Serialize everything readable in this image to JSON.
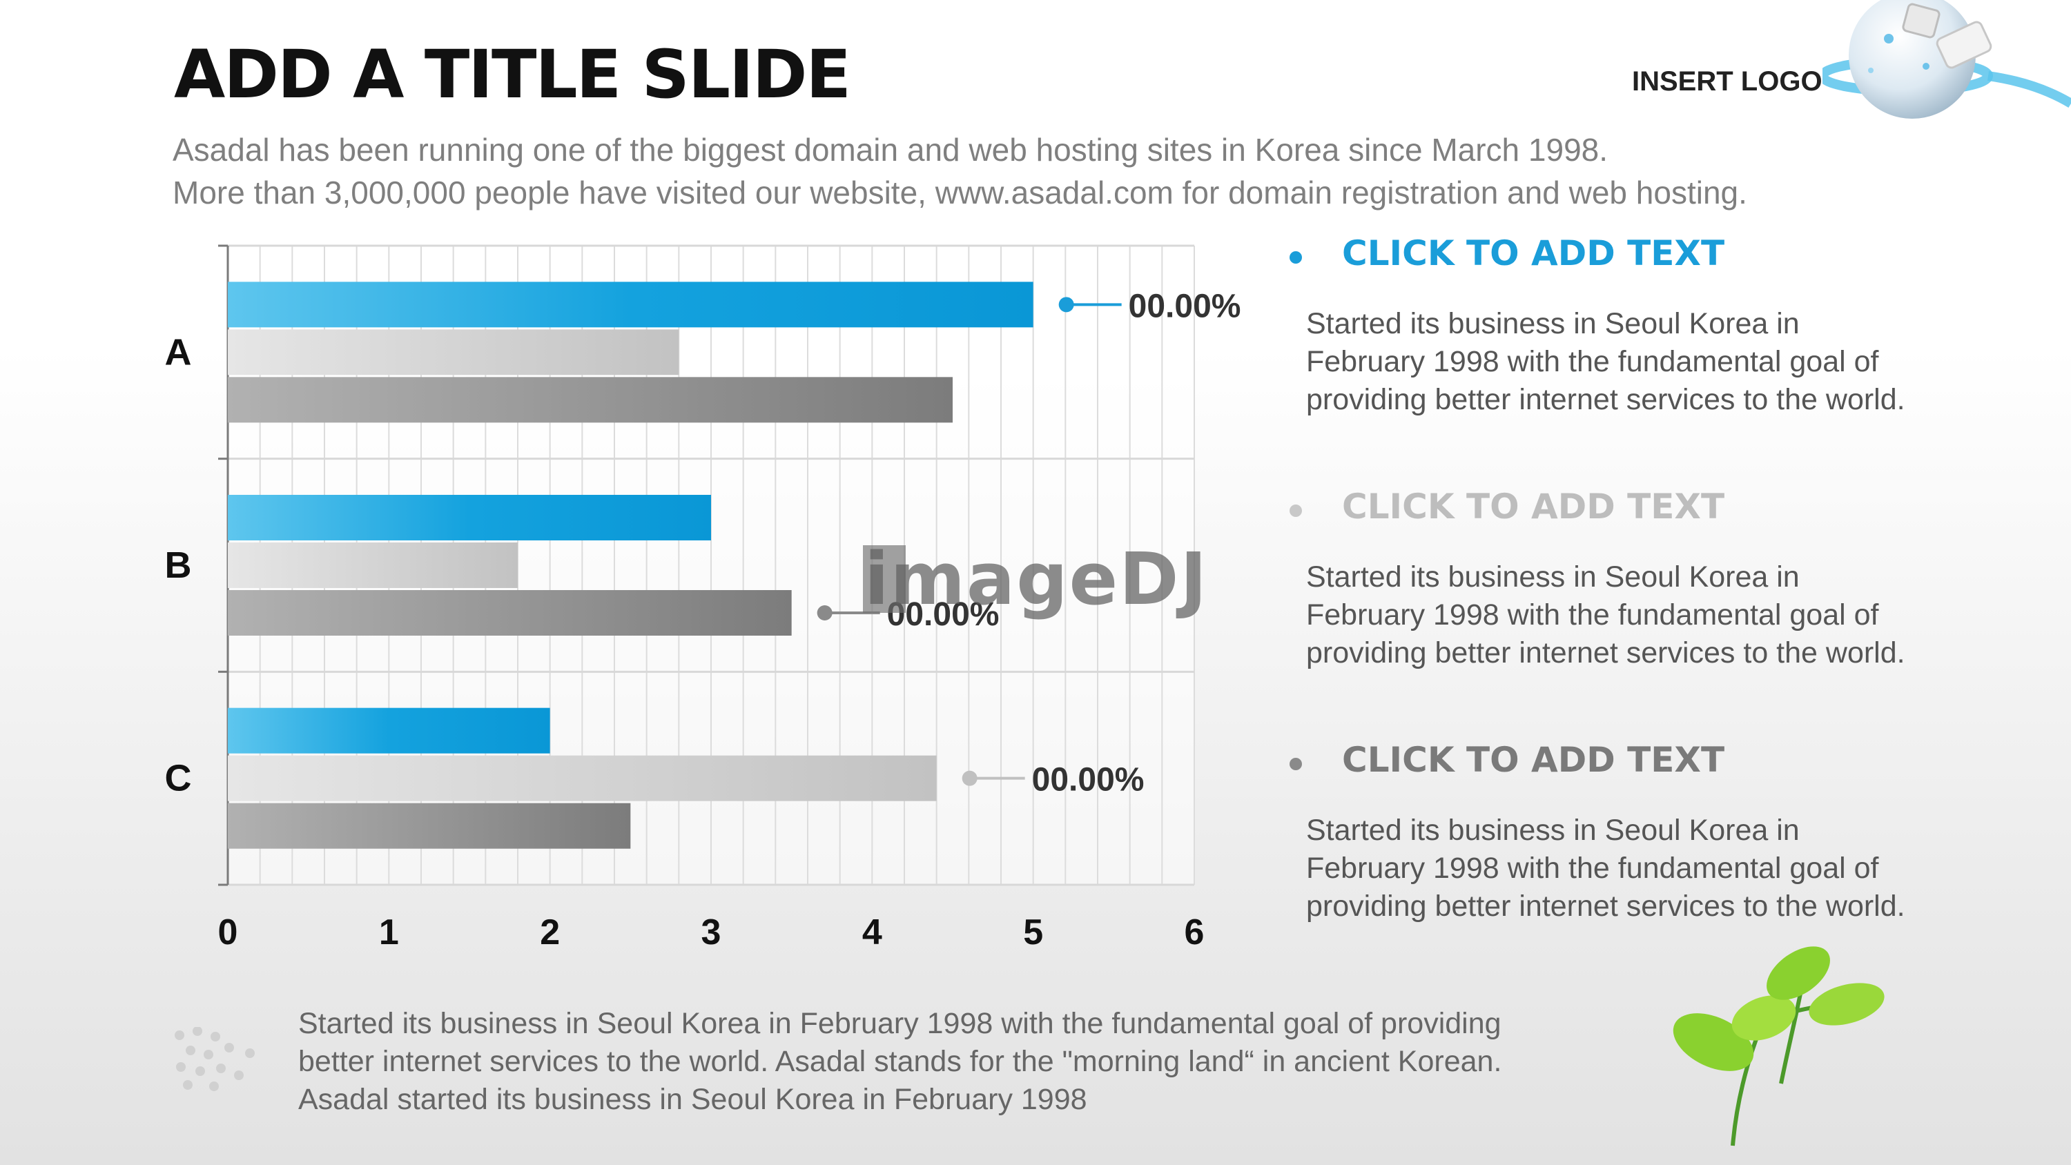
{
  "slide": {
    "title": "ADD A TITLE SLIDE",
    "subtitle_lines": [
      "Asadal has been running one of the biggest domain and web hosting sites in Korea since March 1998.",
      "More than 3,000,000 people have visited our website,  www.asadal.com for domain registration and web hosting."
    ],
    "logo_text": "INSERT LOGO",
    "watermark": "imageDJ"
  },
  "right_column": {
    "items": [
      {
        "heading": "CLICK TO ADD TEXT",
        "heading_color": "#1a9dd9",
        "bullet_color": "#1a9dd9",
        "body": "Started its business in Seoul Korea  in February 1998 with the fundamental goal of providing better internet services to the world."
      },
      {
        "heading": "CLICK TO ADD TEXT",
        "heading_color": "#bdbdbd",
        "bullet_color": "#c8c8c8",
        "body": "Started its business in Seoul Korea  in February 1998 with the fundamental goal of providing better internet services to the world."
      },
      {
        "heading": "CLICK TO ADD TEXT",
        "heading_color": "#7a7a7a",
        "bullet_color": "#8a8a8a",
        "body": "Started its business in Seoul Korea  in February 1998 with the fundamental goal of providing better internet services to the world."
      }
    ]
  },
  "footer": {
    "lines": [
      "Started its business in Seoul Korea  in February 1998 with the fundamental goal of providing",
      "better internet services to the world. Asadal stands for the \"morning land“ in ancient Korean.",
      "Asadal started its business in Seoul Korea  in February 1998"
    ]
  },
  "chart_data": {
    "type": "bar",
    "orientation": "horizontal",
    "categories": [
      "A",
      "B",
      "C"
    ],
    "series": [
      {
        "values": [
          5,
          3,
          2
        ],
        "color": "#1a9dd9"
      },
      {
        "values": [
          2.8,
          1.8,
          4.4
        ],
        "color": "#c9c9c9"
      },
      {
        "values": [
          4.5,
          3.5,
          2.5
        ],
        "color": "#8c8c8c"
      }
    ],
    "xlim": [
      0,
      6
    ],
    "x_ticks": [
      "0",
      "1",
      "2",
      "3",
      "4",
      "5",
      "6"
    ],
    "grid": true,
    "annotations": [
      {
        "category": "A",
        "series": 0,
        "text": "00.00%",
        "color": "#1a9dd9"
      },
      {
        "category": "B",
        "series": 2,
        "text": "00.00%",
        "color": "#8a8a8a"
      },
      {
        "category": "C",
        "series": 1,
        "text": "00.00%",
        "color": "#c0c0c0"
      }
    ]
  }
}
